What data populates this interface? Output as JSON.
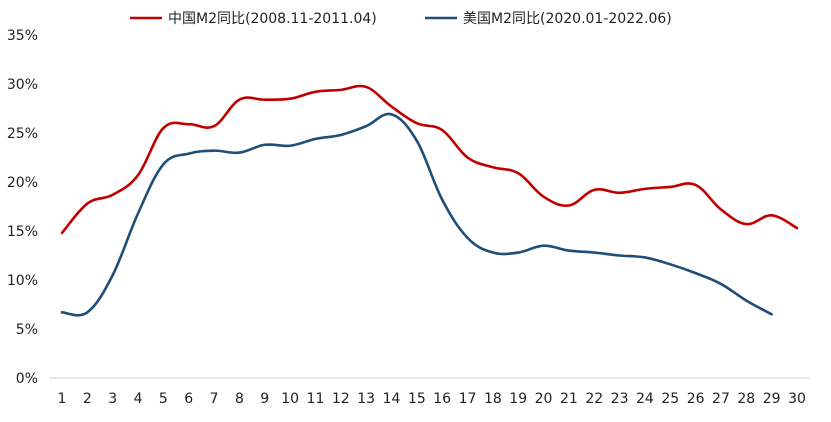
{
  "chart_data": {
    "type": "line",
    "title": "",
    "xlabel": "",
    "ylabel": "",
    "x": [
      1,
      2,
      3,
      4,
      5,
      6,
      7,
      8,
      9,
      10,
      11,
      12,
      13,
      14,
      15,
      16,
      17,
      18,
      19,
      20,
      21,
      22,
      23,
      24,
      25,
      26,
      27,
      28,
      29,
      30
    ],
    "ylim": [
      0,
      35
    ],
    "yticks": [
      "0%",
      "5%",
      "10%",
      "15%",
      "20%",
      "25%",
      "30%",
      "35%"
    ],
    "y_tick_values": [
      0,
      5,
      10,
      15,
      20,
      25,
      30,
      35
    ],
    "grid": false,
    "legend_position": "top-center",
    "series": [
      {
        "name": "中国M2同比(2008.11-2011.04)",
        "color": "#C00000",
        "values": [
          14.8,
          17.8,
          18.7,
          20.7,
          25.5,
          25.9,
          25.7,
          28.4,
          28.4,
          28.5,
          29.2,
          29.4,
          29.7,
          27.7,
          26.0,
          25.3,
          22.5,
          21.5,
          20.9,
          18.5,
          17.6,
          19.2,
          18.9,
          19.3,
          19.5,
          19.7,
          17.2,
          15.7,
          16.6,
          15.3
        ]
      },
      {
        "name": "美国M2同比(2020.01-2022.06)",
        "color": "#1F4E79",
        "values": [
          6.7,
          6.7,
          10.5,
          16.8,
          21.8,
          22.9,
          23.2,
          23.0,
          23.8,
          23.7,
          24.4,
          24.8,
          25.7,
          26.9,
          24.2,
          18.2,
          14.3,
          12.8,
          12.8,
          13.5,
          13.0,
          12.8,
          12.5,
          12.3,
          11.6,
          10.7,
          9.6,
          7.9,
          6.5,
          null
        ]
      }
    ]
  }
}
